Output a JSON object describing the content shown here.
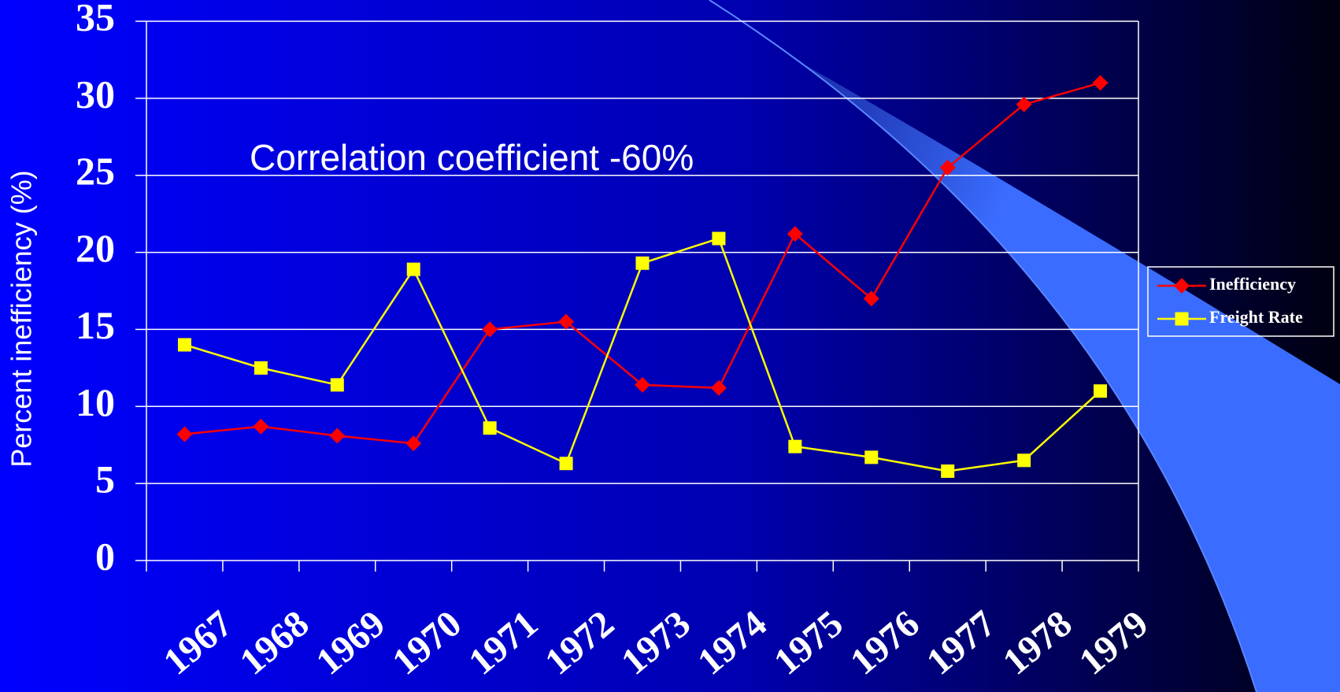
{
  "chart_data": {
    "type": "line",
    "y_label": "Percent inefficiency (%)",
    "annotation": "Correlation coefficient -60%",
    "categories": [
      "1967",
      "1968",
      "1969",
      "1970",
      "1971",
      "1972",
      "1973",
      "1974",
      "1975",
      "1976",
      "1977",
      "1978",
      "1979"
    ],
    "series": [
      {
        "name": "Inefficiency",
        "color": "#ff0000",
        "marker": "diamond",
        "values": [
          8.2,
          8.7,
          8.1,
          7.6,
          15.0,
          15.5,
          11.4,
          11.2,
          21.2,
          17.0,
          25.5,
          29.6,
          31.0
        ]
      },
      {
        "name": "Freight Rate",
        "color": "#ffff00",
        "marker": "square",
        "values": [
          14.0,
          12.5,
          11.4,
          18.9,
          8.6,
          6.3,
          19.3,
          20.9,
          7.4,
          6.7,
          5.8,
          6.5,
          11.0
        ]
      }
    ],
    "ylim": [
      0,
      35
    ],
    "yticks": [
      0,
      5,
      10,
      15,
      20,
      25,
      30,
      35
    ],
    "grid": true,
    "legend": "right"
  }
}
